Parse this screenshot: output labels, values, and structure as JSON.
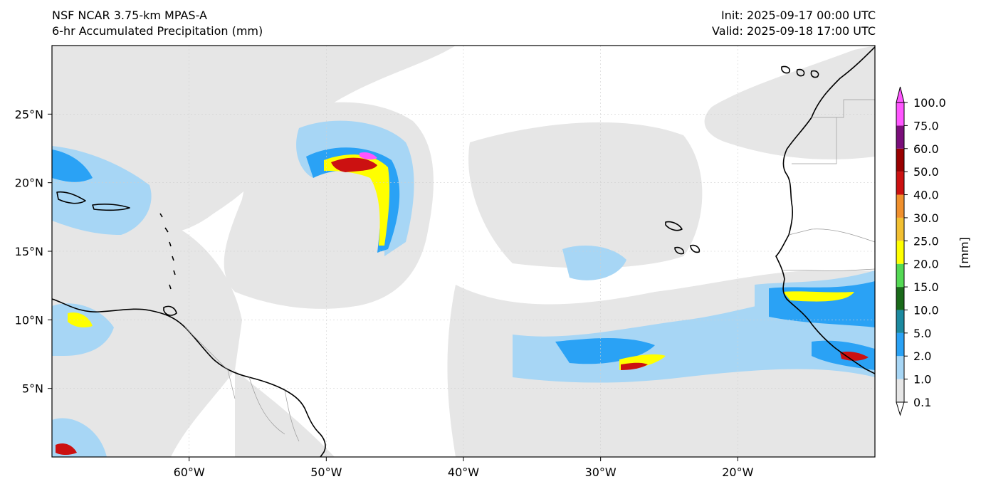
{
  "header": {
    "model": "NSF NCAR 3.75-km MPAS-A",
    "field": "6-hr Accumulated Precipitation (mm)",
    "init": "Init: 2025-09-17 00:00 UTC",
    "valid": "Valid: 2025-09-18 17:00 UTC"
  },
  "map": {
    "lon_range": [
      -70,
      -10
    ],
    "lat_range": [
      0,
      30
    ],
    "lon_ticks": [
      {
        "value": -60,
        "label": "60°W"
      },
      {
        "value": -50,
        "label": "50°W"
      },
      {
        "value": -40,
        "label": "40°W"
      },
      {
        "value": -30,
        "label": "30°W"
      },
      {
        "value": -20,
        "label": "20°W"
      }
    ],
    "lat_ticks": [
      {
        "value": 25,
        "label": "25°N"
      },
      {
        "value": 20,
        "label": "20°N"
      },
      {
        "value": 15,
        "label": "15°N"
      },
      {
        "value": 10,
        "label": "10°N"
      },
      {
        "value": 5,
        "label": "5°N"
      }
    ],
    "gridlines": true
  },
  "colorbar": {
    "unit_label": "[mm]",
    "levels": [
      "0.1",
      "1.0",
      "2.0",
      "5.0",
      "10.0",
      "15.0",
      "20.0",
      "25.0",
      "30.0",
      "40.0",
      "50.0",
      "60.0",
      "75.0",
      "100.0"
    ],
    "colors": [
      "#e6e6e6",
      "#a7d6f5",
      "#2aa2f5",
      "#1c8aa0",
      "#1a6a1a",
      "#54d954",
      "#ffff00",
      "#f2c032",
      "#f0902d",
      "#cc1111",
      "#990000",
      "#7a0e7a",
      "#ff55ff"
    ],
    "extend": "both"
  },
  "colors": {
    "land": "#ffffff",
    "ocean": "#ffffff",
    "coast": "#000000",
    "border": "#9a9a9a"
  }
}
